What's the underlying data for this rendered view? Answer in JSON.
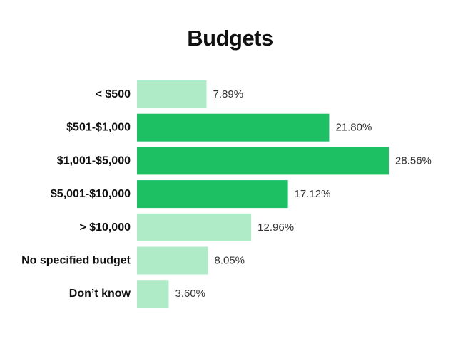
{
  "chart_data": {
    "type": "bar",
    "orientation": "horizontal",
    "title": "Budgets",
    "categories": [
      "< $500",
      "$501-$1,000",
      "$1,001-$5,000",
      "$5,001-$10,000",
      "> $10,000",
      "No specified budget",
      "Don’t know"
    ],
    "values": [
      7.89,
      21.8,
      28.56,
      17.12,
      12.96,
      8.05,
      3.6
    ],
    "value_labels": [
      "7.89%",
      "21.80%",
      "28.56%",
      "17.12%",
      "12.96%",
      "8.05%",
      "3.60%"
    ],
    "highlighted": [
      false,
      true,
      true,
      true,
      false,
      false,
      false
    ],
    "xlim": [
      0,
      28.56
    ],
    "grid": false,
    "colors": {
      "highlight": "#1ec064",
      "normal": "#b0ebc7"
    }
  }
}
